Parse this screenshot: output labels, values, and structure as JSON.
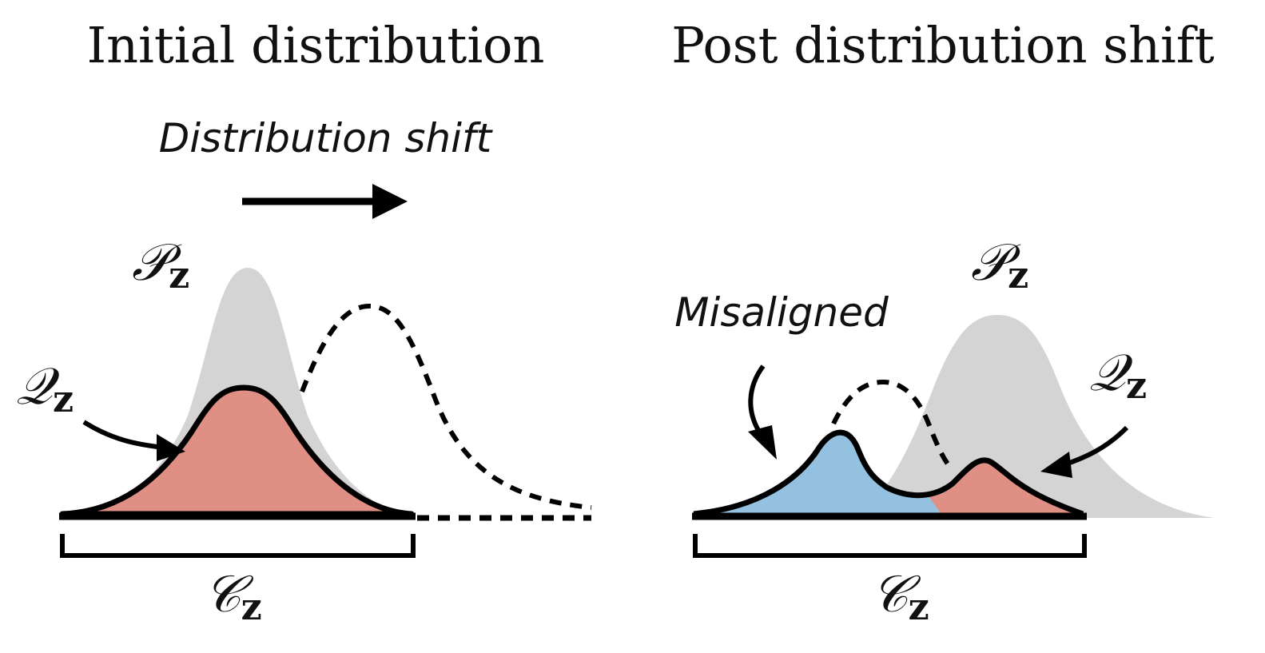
{
  "panels": {
    "left": {
      "title": "Initial distribution",
      "shift_caption": "Distribution shift",
      "p_symbol": "𝒫",
      "p_subscript": "z",
      "q_symbol": "𝒬",
      "q_subscript": "z",
      "c_symbol": "𝒞",
      "c_subscript": "z"
    },
    "right": {
      "title": "Post distribution shift",
      "misaligned_caption": "Misaligned",
      "p_symbol": "𝒫",
      "p_subscript": "z",
      "q_symbol": "𝒬",
      "q_subscript": "z",
      "c_symbol": "𝒞",
      "c_subscript": "z"
    }
  },
  "colors": {
    "p_fill": "#d4d4d4",
    "q_fill_aligned": "#e08f84",
    "q_fill_misaligned": "#93c1df",
    "stroke": "#000000"
  }
}
